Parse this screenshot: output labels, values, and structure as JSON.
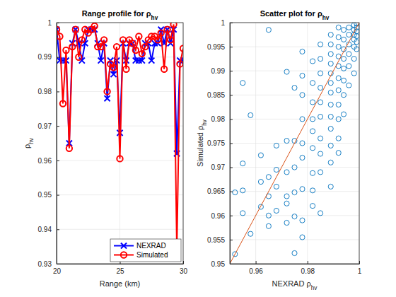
{
  "chart_data": [
    {
      "type": "line",
      "title": "Range profile for ρhv",
      "x_label": "Range (km)",
      "y_label": "ρhv",
      "x": [
        20,
        20.25,
        20.5,
        20.75,
        21,
        21.25,
        21.5,
        21.75,
        22,
        22.25,
        22.5,
        22.75,
        23,
        23.25,
        23.5,
        23.75,
        24,
        24.25,
        24.5,
        24.75,
        25,
        25.25,
        25.5,
        25.75,
        26,
        26.25,
        26.5,
        26.75,
        27,
        27.25,
        27.5,
        27.75,
        28,
        28.25,
        28.5,
        28.75,
        29,
        29.25,
        29.5,
        29.75,
        30
      ],
      "series": [
        {
          "name": "NEXRAD",
          "color": "#0000ff",
          "marker": "x",
          "line_style": "solid",
          "values": [
            0.998,
            0.989,
            0.989,
            0.989,
            0.965,
            0.994,
            0.998,
            0.994,
            0.989,
            0.994,
            0.998,
            0.998,
            0.998,
            0.994,
            0.989,
            0.994,
            0.978,
            0.989,
            0.985,
            0.989,
            0.968,
            0.994,
            0.989,
            0.994,
            0.994,
            0.989,
            0.989,
            0.989,
            0.994,
            0.994,
            0.989,
            0.994,
            0.994,
            0.998,
            0.994,
            0.998,
            0.994,
            0.998,
            0.962,
            0.989,
            0.989
          ]
        },
        {
          "name": "Simulated",
          "color": "#ff0000",
          "marker": "circle",
          "line_style": "solid",
          "values": [
            0.998,
            0.996,
            0.9765,
            0.992,
            0.9635,
            0.993,
            0.998,
            0.99,
            0.995,
            0.998,
            0.997,
            0.998,
            0.999,
            0.993,
            0.993,
            0.995,
            0.98,
            0.988,
            0.987,
            0.993,
            0.9605,
            0.995,
            0.9865,
            0.995,
            0.994,
            0.992,
            0.996,
            0.991,
            0.993,
            0.995,
            0.996,
            0.996,
            0.995,
            0.997,
            0.9865,
            0.998,
            0.995,
            0.9995,
            0.934,
            0.988,
            0.9925
          ]
        }
      ],
      "xlim": [
        20,
        30
      ],
      "xticks": [
        20,
        25,
        30
      ],
      "ylim": [
        0.93,
        1
      ],
      "yticks": [
        0.93,
        0.94,
        0.95,
        0.96,
        0.97,
        0.98,
        0.99,
        1
      ],
      "grid": true,
      "legend": "lower right"
    },
    {
      "type": "scatter",
      "title": "Scatter plot for ρhv",
      "x_label": "NEXRAD ρhv",
      "y_label": "Simulated ρhv",
      "series": [
        {
          "type": "scatter",
          "color": "#0072bd",
          "marker": "circle",
          "x": [
            0.952,
            0.952,
            0.955,
            0.955,
            0.955,
            0.955,
            0.958,
            0.958,
            0.962,
            0.962,
            0.962,
            0.965,
            0.965,
            0.965,
            0.965,
            0.965,
            0.968,
            0.968,
            0.968,
            0.968,
            0.972,
            0.972,
            0.972,
            0.972,
            0.972,
            0.972,
            0.975,
            0.975,
            0.975,
            0.975,
            0.975,
            0.975,
            0.978,
            0.978,
            0.978,
            0.978,
            0.978,
            0.978,
            0.978,
            0.978,
            0.978,
            0.982,
            0.982,
            0.982,
            0.982,
            0.982,
            0.982,
            0.982,
            0.982,
            0.982,
            0.985,
            0.985,
            0.985,
            0.985,
            0.985,
            0.985,
            0.985,
            0.985,
            0.985,
            0.985,
            0.989,
            0.989,
            0.989,
            0.989,
            0.989,
            0.989,
            0.989,
            0.989,
            0.989,
            0.989,
            0.989,
            0.989,
            0.989,
            0.992,
            0.992,
            0.992,
            0.992,
            0.992,
            0.992,
            0.992,
            0.992,
            0.992,
            0.992,
            0.992,
            0.994,
            0.994,
            0.994,
            0.994,
            0.994,
            0.994,
            0.994,
            0.994,
            0.996,
            0.996,
            0.996,
            0.996,
            0.996,
            0.996,
            0.998,
            0.998,
            0.998,
            0.998,
            0.998,
            0.998,
            0.998,
            0.999,
            0.999,
            0.999,
            0.999,
            0.999,
            0.999
          ],
          "values": [
            0.952,
            0.9648,
            0.9708,
            0.9652,
            0.9605,
            0.9875,
            0.9808,
            0.9562,
            0.9725,
            0.967,
            0.9618,
            0.9985,
            0.968,
            0.964,
            0.9578,
            0.96,
            0.9745,
            0.9695,
            0.966,
            0.961,
            0.9898,
            0.9755,
            0.969,
            0.964,
            0.9625,
            0.9585,
            0.9865,
            0.9755,
            0.97,
            0.9648,
            0.9598,
            0.9522,
            0.994,
            0.989,
            0.985,
            0.98,
            0.975,
            0.972,
            0.9655,
            0.959,
            0.9555,
            0.992,
            0.9875,
            0.9835,
            0.98,
            0.9775,
            0.974,
            0.9688,
            0.9652,
            0.962,
            0.9955,
            0.9925,
            0.9895,
            0.9865,
            0.9835,
            0.9805,
            0.976,
            0.9728,
            0.969,
            0.9605,
            0.9975,
            0.9955,
            0.9935,
            0.9915,
            0.9895,
            0.9875,
            0.9855,
            0.983,
            0.9805,
            0.978,
            0.9745,
            0.971,
            0.966,
            0.999,
            0.997,
            0.995,
            0.993,
            0.991,
            0.9885,
            0.986,
            0.983,
            0.98,
            0.976,
            0.973,
            0.9985,
            0.9965,
            0.9945,
            0.9925,
            0.9905,
            0.988,
            0.985,
            0.981,
            0.999,
            0.9975,
            0.9955,
            0.9935,
            0.991,
            0.987,
            0.9995,
            0.9985,
            0.9975,
            0.9965,
            0.995,
            0.9925,
            0.9895,
            0.9998,
            0.999,
            0.9982,
            0.9972,
            0.996,
            0.9945
          ]
        },
        {
          "type": "line",
          "color": "#d95319",
          "line_style": "solid",
          "x": [
            0.95,
            1
          ],
          "values": [
            0.95,
            1
          ]
        }
      ],
      "xlim": [
        0.95,
        1
      ],
      "xticks": [
        0.96,
        0.98,
        1
      ],
      "ylim": [
        0.95,
        1
      ],
      "yticks": [
        0.95,
        0.955,
        0.96,
        0.965,
        0.97,
        0.975,
        0.98,
        0.985,
        0.99,
        0.995,
        1
      ],
      "grid": true
    }
  ]
}
